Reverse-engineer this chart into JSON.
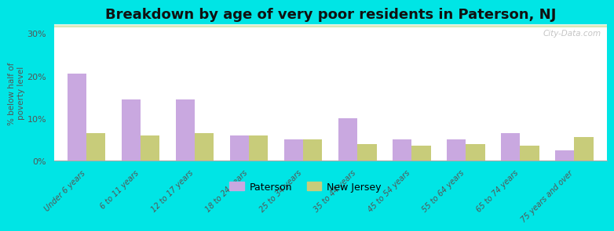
{
  "title": "Breakdown by age of very poor residents in Paterson, NJ",
  "ylabel": "% below half of\npoverty level",
  "categories": [
    "Under 6 years",
    "6 to 11 years",
    "12 to 17 years",
    "18 to 24 years",
    "25 to 34 years",
    "35 to 44 years",
    "45 to 54 years",
    "55 to 64 years",
    "65 to 74 years",
    "75 years and over"
  ],
  "paterson_values": [
    20.5,
    14.5,
    14.5,
    6.0,
    5.0,
    10.0,
    5.0,
    5.0,
    6.5,
    2.5
  ],
  "nj_values": [
    6.5,
    6.0,
    6.5,
    6.0,
    5.0,
    4.0,
    3.5,
    4.0,
    3.5,
    5.5
  ],
  "paterson_color": "#c9a8e0",
  "nj_color": "#c8cc7a",
  "background_outer": "#00e5e5",
  "background_plot_top": "#f5f8ee",
  "background_plot_bottom": "#d8e8b8",
  "ylim": [
    0,
    32
  ],
  "yticks": [
    0,
    10,
    20,
    30
  ],
  "ytick_labels": [
    "0%",
    "10%",
    "20%",
    "30%"
  ],
  "bar_width": 0.35,
  "title_fontsize": 13,
  "legend_labels": [
    "Paterson",
    "New Jersey"
  ],
  "watermark": "City-Data.com"
}
